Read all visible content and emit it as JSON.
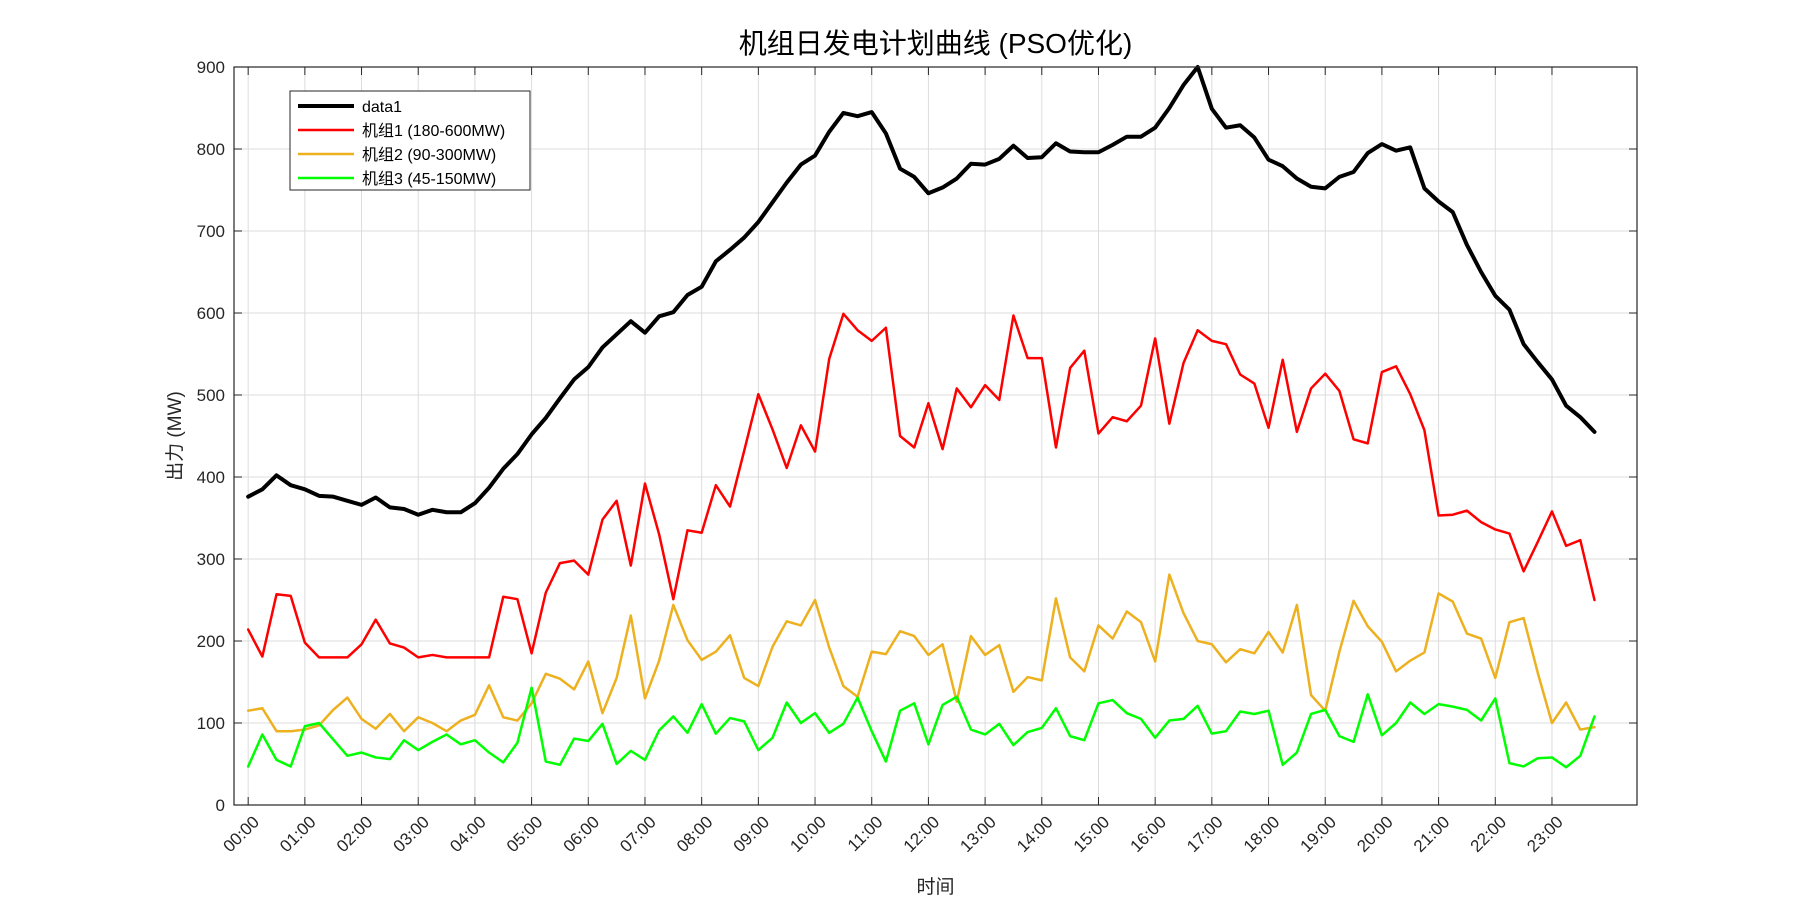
{
  "chart_data": {
    "type": "line",
    "title": "机组日发电计划曲线 (PSO优化)",
    "xlabel": "时间",
    "ylabel": "出力 (MW)",
    "ylim": [
      0,
      900
    ],
    "yticks": [
      0,
      100,
      200,
      300,
      400,
      500,
      600,
      700,
      800,
      900
    ],
    "xlim": [
      -0.25,
      24.5
    ],
    "xticks": [
      "00:00",
      "01:00",
      "02:00",
      "03:00",
      "04:00",
      "05:00",
      "06:00",
      "07:00",
      "08:00",
      "09:00",
      "10:00",
      "11:00",
      "12:00",
      "13:00",
      "14:00",
      "15:00",
      "16:00",
      "17:00",
      "18:00",
      "19:00",
      "20:00",
      "21:00",
      "22:00",
      "23:00"
    ],
    "grid": true,
    "legend_position": "top-left",
    "x_hours": [
      0,
      0.25,
      0.5,
      0.75,
      1,
      1.25,
      1.5,
      1.75,
      2,
      2.25,
      2.5,
      2.75,
      3,
      3.25,
      3.5,
      3.75,
      4,
      4.25,
      4.5,
      4.75,
      5,
      5.25,
      5.5,
      5.75,
      6,
      6.25,
      6.5,
      6.75,
      7,
      7.25,
      7.5,
      7.75,
      8,
      8.25,
      8.5,
      8.75,
      9,
      9.25,
      9.5,
      9.75,
      10,
      10.25,
      10.5,
      10.75,
      11,
      11.25,
      11.5,
      11.75,
      12,
      12.25,
      12.5,
      12.75,
      13,
      13.25,
      13.5,
      13.75,
      14,
      14.25,
      14.5,
      14.75,
      15,
      15.25,
      15.5,
      15.75,
      16,
      16.25,
      16.5,
      16.75,
      17,
      17.25,
      17.5,
      17.75,
      18,
      18.25,
      18.5,
      18.75,
      19,
      19.25,
      19.5,
      19.75,
      20,
      20.25,
      20.5,
      20.75,
      21,
      21.25,
      21.5,
      21.75,
      22,
      22.25,
      22.5,
      22.75,
      23,
      23.25,
      23.5,
      23.75
    ],
    "series": [
      {
        "name": "data1",
        "color": "#000000",
        "width": 4,
        "values": [
          376,
          385,
          402,
          390,
          385,
          377,
          376,
          371,
          366,
          375,
          363,
          361,
          354,
          360,
          357,
          357,
          368,
          387,
          410,
          428,
          452,
          472,
          496,
          519,
          534,
          558,
          574,
          590,
          576,
          596,
          601,
          622,
          632,
          663,
          677,
          692,
          711,
          735,
          759,
          781,
          792,
          821,
          844,
          840,
          845,
          819,
          776,
          766,
          746,
          753,
          764,
          782,
          781,
          788,
          804,
          789,
          790,
          807,
          797,
          796,
          796,
          805,
          815,
          815,
          826,
          850,
          878,
          900,
          849,
          826,
          829,
          814,
          787,
          779,
          764,
          754,
          752,
          766,
          772,
          795,
          806,
          798,
          802,
          752,
          736,
          723,
          683,
          650,
          621,
          604,
          562,
          540,
          519,
          487,
          473,
          455
        ]
      },
      {
        "name": "机组1 (180-600MW)",
        "color": "#ff0000",
        "width": 2.5,
        "values": [
          214,
          181,
          257,
          255,
          198,
          180,
          180,
          180,
          196,
          226,
          197,
          192,
          180,
          183,
          180,
          180,
          180,
          180,
          254,
          251,
          185,
          259,
          295,
          298,
          281,
          348,
          371,
          292,
          392,
          330,
          251,
          335,
          332,
          390,
          364,
          432,
          501,
          458,
          411,
          463,
          431,
          544,
          599,
          579,
          566,
          582,
          450,
          436,
          490,
          434,
          508,
          485,
          512,
          494,
          597,
          545,
          545,
          436,
          533,
          554,
          453,
          473,
          468,
          487,
          569,
          465,
          539,
          579,
          566,
          562,
          525,
          514,
          460,
          543,
          455,
          508,
          526,
          505,
          446,
          441,
          528,
          535,
          501,
          457,
          353,
          354,
          359,
          345,
          336,
          331,
          285,
          321,
          358,
          316,
          323,
          250
        ]
      },
      {
        "name": "机组2 (90-300MW)",
        "color": "#edb120",
        "width": 2.5,
        "values": [
          115,
          118,
          90,
          90,
          92,
          97,
          116,
          131,
          105,
          93,
          111,
          90,
          107,
          100,
          90,
          103,
          110,
          146,
          107,
          103,
          124,
          160,
          154,
          141,
          175,
          112,
          155,
          231,
          130,
          176,
          244,
          201,
          177,
          187,
          207,
          155,
          145,
          193,
          224,
          219,
          250,
          192,
          145,
          132,
          187,
          184,
          212,
          206,
          183,
          196,
          126,
          206,
          183,
          195,
          138,
          156,
          152,
          252,
          180,
          163,
          219,
          203,
          236,
          223,
          175,
          281,
          234,
          200,
          196,
          174,
          190,
          185,
          211,
          186,
          244,
          134,
          115,
          187,
          249,
          218,
          199,
          163,
          176,
          186,
          258,
          248,
          209,
          203,
          155,
          223,
          228,
          161,
          100,
          125,
          92,
          95
        ]
      },
      {
        "name": "机组3 (45-150MW)",
        "color": "#00ff00",
        "width": 2.5,
        "values": [
          47,
          86,
          55,
          47,
          96,
          100,
          80,
          60,
          64,
          58,
          56,
          79,
          67,
          77,
          86,
          74,
          79,
          64,
          52,
          76,
          143,
          53,
          49,
          81,
          78,
          99,
          50,
          66,
          55,
          91,
          108,
          88,
          123,
          87,
          106,
          102,
          67,
          82,
          125,
          100,
          112,
          88,
          99,
          131,
          90,
          53,
          115,
          124,
          74,
          122,
          132,
          92,
          86,
          99,
          73,
          89,
          94,
          118,
          84,
          79,
          124,
          128,
          112,
          105,
          82,
          103,
          105,
          121,
          87,
          90,
          114,
          111,
          115,
          49,
          64,
          111,
          116,
          84,
          77,
          135,
          85,
          100,
          125,
          111,
          123,
          120,
          116,
          103,
          130,
          51,
          47,
          57,
          58,
          46,
          60,
          108
        ]
      }
    ]
  }
}
